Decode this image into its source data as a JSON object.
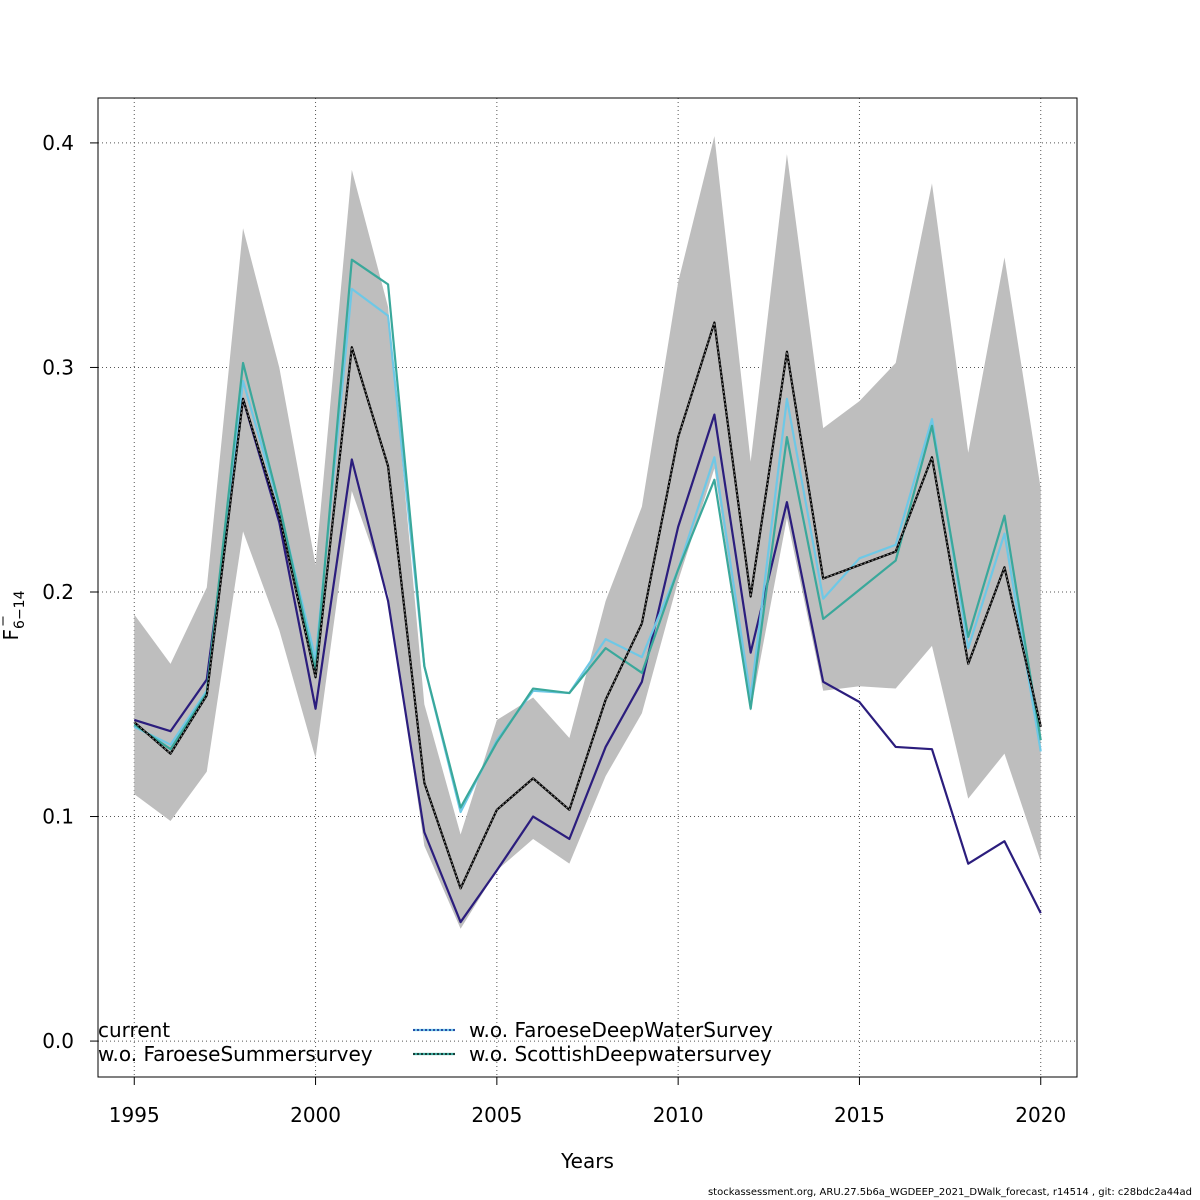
{
  "footer_text": "stockassessment.org, ARU.27.5b6a_WGDEEP_2021_DWalk_forecast, r14514 , git: c28bdc2a44ad",
  "chart_data": {
    "type": "line",
    "title": "",
    "xlabel": "Years",
    "ylabel_base": "F",
    "ylabel_sub": "6−14",
    "xlim": [
      1994,
      2021
    ],
    "ylim": [
      -0.016,
      0.42
    ],
    "x_ticks": [
      1995,
      2000,
      2005,
      2010,
      2015,
      2020
    ],
    "x_tick_labels": [
      "1995",
      "2000",
      "2005",
      "2010",
      "2015",
      "2020"
    ],
    "y_ticks": [
      0.0,
      0.1,
      0.2,
      0.3,
      0.4
    ],
    "y_tick_labels": [
      "0.0",
      "0.1",
      "0.2",
      "0.3",
      "0.4"
    ],
    "grid": true,
    "legend_placement": "bottom",
    "x": [
      1995,
      1996,
      1997,
      1998,
      1999,
      2000,
      2001,
      2002,
      2003,
      2004,
      2005,
      2006,
      2007,
      2008,
      2009,
      2010,
      2011,
      2012,
      2013,
      2014,
      2015,
      2016,
      2017,
      2018,
      2019,
      2020
    ],
    "band": {
      "color": "#bebebe",
      "lower": [
        0.11,
        0.098,
        0.12,
        0.227,
        0.183,
        0.126,
        0.245,
        0.199,
        0.087,
        0.05,
        0.076,
        0.09,
        0.079,
        0.118,
        0.146,
        0.205,
        0.255,
        0.147,
        0.233,
        0.156,
        0.158,
        0.157,
        0.176,
        0.108,
        0.128,
        0.08
      ],
      "upper": [
        0.19,
        0.168,
        0.202,
        0.362,
        0.3,
        0.212,
        0.388,
        0.327,
        0.15,
        0.092,
        0.143,
        0.153,
        0.135,
        0.196,
        0.238,
        0.338,
        0.403,
        0.258,
        0.395,
        0.273,
        0.285,
        0.302,
        0.382,
        0.262,
        0.349,
        0.246
      ]
    },
    "series": [
      {
        "name": "current",
        "color": "#000000",
        "dashed_overlay": null,
        "values": [
          0.142,
          0.128,
          0.154,
          0.286,
          0.234,
          0.162,
          0.309,
          0.256,
          0.115,
          0.068,
          0.103,
          0.117,
          0.103,
          0.152,
          0.186,
          0.269,
          0.32,
          0.198,
          0.307,
          0.206,
          0.212,
          0.218,
          0.26,
          0.168,
          0.211,
          0.14
        ]
      },
      {
        "name": "w.o. FaroeseSummersurvey",
        "color": "#2b1d7d",
        "dashed_overlay": null,
        "values": [
          0.143,
          0.138,
          0.161,
          0.286,
          0.231,
          0.148,
          0.259,
          0.196,
          0.093,
          0.053,
          0.076,
          0.1,
          0.09,
          0.131,
          0.16,
          0.229,
          0.279,
          0.173,
          0.24,
          0.16,
          0.151,
          0.131,
          0.13,
          0.079,
          0.089,
          0.057
        ]
      },
      {
        "name": "w.o. FaroeseDeepWaterSurvey",
        "color": "#6ec8e6",
        "dashed_overlay": "#000080",
        "values": [
          0.14,
          0.132,
          0.156,
          0.294,
          0.238,
          0.17,
          0.335,
          0.323,
          0.167,
          0.102,
          0.134,
          0.156,
          0.155,
          0.179,
          0.171,
          0.21,
          0.26,
          0.153,
          0.286,
          0.197,
          0.215,
          0.221,
          0.277,
          0.175,
          0.226,
          0.129
        ]
      },
      {
        "name": "w.o. ScottishDeepwatersurvey",
        "color": "#3aa89b",
        "dashed_overlay": "#000000",
        "values": [
          0.141,
          0.13,
          0.155,
          0.302,
          0.239,
          0.165,
          0.348,
          0.337,
          0.167,
          0.104,
          0.133,
          0.157,
          0.155,
          0.175,
          0.164,
          0.21,
          0.25,
          0.148,
          0.269,
          0.188,
          0.201,
          0.214,
          0.274,
          0.18,
          0.234,
          0.134
        ]
      }
    ]
  }
}
